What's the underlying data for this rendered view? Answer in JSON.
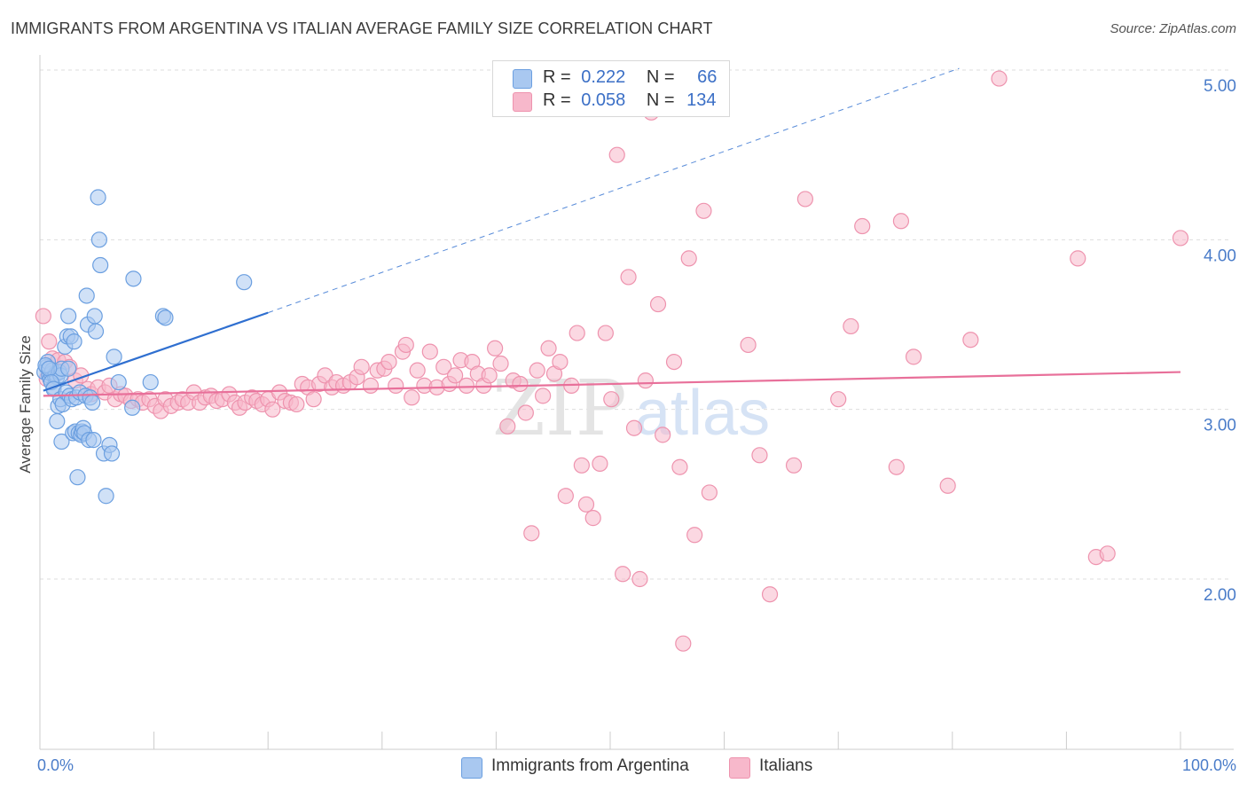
{
  "header": {
    "title": "IMMIGRANTS FROM ARGENTINA VS ITALIAN AVERAGE FAMILY SIZE CORRELATION CHART",
    "source": "Source: ZipAtlas.com"
  },
  "legend": {
    "rows": [
      {
        "r_label": "R =",
        "r_value": "0.222",
        "n_label": "N =",
        "n_value": "66",
        "color": "#a9c8f0"
      },
      {
        "r_label": "R =",
        "r_value": "0.058",
        "n_label": "N =",
        "n_value": "134",
        "color": "#f7b8cb"
      }
    ]
  },
  "bottom_legend": {
    "series_a": "Immigrants from Argentina",
    "series_b": "Italians"
  },
  "watermark": {
    "zip": "ZIP",
    "atlas": "atlas"
  },
  "colors": {
    "blue_fill": "#a9c8f0",
    "blue_stroke": "#6b9fe0",
    "blue_line": "#2f6fd0",
    "pink_fill": "#f7b8cb",
    "pink_stroke": "#ee93ae",
    "pink_line": "#e8709a",
    "grid": "#dddddd",
    "axis_text": "#4a7cc9"
  },
  "chart_data": {
    "type": "scatter",
    "title": "IMMIGRANTS FROM ARGENTINA VS ITALIAN AVERAGE FAMILY SIZE CORRELATION CHART",
    "xlabel": "",
    "ylabel": "Average Family Size",
    "xlim": [
      0,
      100
    ],
    "ylim": [
      1.0,
      5.1
    ],
    "x_tick_labels": [
      "0.0%",
      "100.0%"
    ],
    "y_ticks": [
      2.0,
      3.0,
      4.0,
      5.0
    ],
    "y_tick_labels": [
      "2.00",
      "3.00",
      "4.00",
      "5.00"
    ],
    "grid": true,
    "legend_position": "top-center",
    "series": [
      {
        "name": "Immigrants from Argentina",
        "R": 0.222,
        "N": 66,
        "trend": {
          "x0": 0.3,
          "y0": 3.11,
          "x1": 20.0,
          "y1": 3.57,
          "dashed_to_x": 80.6,
          "dashed_to_y": 5.01
        },
        "points": [
          [
            0.4,
            3.22
          ],
          [
            0.6,
            3.25
          ],
          [
            0.7,
            3.28
          ],
          [
            0.8,
            3.2
          ],
          [
            0.9,
            3.18
          ],
          [
            1.0,
            3.21
          ],
          [
            1.1,
            3.23
          ],
          [
            1.2,
            3.13
          ],
          [
            1.3,
            3.2
          ],
          [
            1.4,
            3.21
          ],
          [
            1.5,
            3.19
          ],
          [
            1.7,
            3.22
          ],
          [
            1.8,
            3.2
          ],
          [
            1.9,
            3.24
          ],
          [
            0.5,
            3.26
          ],
          [
            0.8,
            3.24
          ],
          [
            1.0,
            3.16
          ],
          [
            1.2,
            3.12
          ],
          [
            1.5,
            2.93
          ],
          [
            1.6,
            3.02
          ],
          [
            1.8,
            3.06
          ],
          [
            1.9,
            2.81
          ],
          [
            2.0,
            3.03
          ],
          [
            2.2,
            3.37
          ],
          [
            2.3,
            3.1
          ],
          [
            2.4,
            3.43
          ],
          [
            2.5,
            3.24
          ],
          [
            2.5,
            3.55
          ],
          [
            2.6,
            3.08
          ],
          [
            2.7,
            3.43
          ],
          [
            2.8,
            3.06
          ],
          [
            2.9,
            2.86
          ],
          [
            3.0,
            3.4
          ],
          [
            3.1,
            2.87
          ],
          [
            3.2,
            3.07
          ],
          [
            3.3,
            2.6
          ],
          [
            3.4,
            2.86
          ],
          [
            3.5,
            3.1
          ],
          [
            3.6,
            2.85
          ],
          [
            3.7,
            2.87
          ],
          [
            3.8,
            2.89
          ],
          [
            3.9,
            2.86
          ],
          [
            4.0,
            3.08
          ],
          [
            4.1,
            3.67
          ],
          [
            4.2,
            3.5
          ],
          [
            4.3,
            2.82
          ],
          [
            4.4,
            3.07
          ],
          [
            4.6,
            3.04
          ],
          [
            4.7,
            2.82
          ],
          [
            4.8,
            3.55
          ],
          [
            4.9,
            3.46
          ],
          [
            5.1,
            4.25
          ],
          [
            5.2,
            4.0
          ],
          [
            5.3,
            3.85
          ],
          [
            5.6,
            2.74
          ],
          [
            5.8,
            2.49
          ],
          [
            6.1,
            2.79
          ],
          [
            6.3,
            2.74
          ],
          [
            6.5,
            3.31
          ],
          [
            6.9,
            3.16
          ],
          [
            8.1,
            3.01
          ],
          [
            8.2,
            3.77
          ],
          [
            9.7,
            3.16
          ],
          [
            10.8,
            3.55
          ],
          [
            11.0,
            3.54
          ],
          [
            17.9,
            3.75
          ]
        ]
      },
      {
        "name": "Italians",
        "R": 0.058,
        "N": 134,
        "trend": {
          "x0": 0.3,
          "y0": 3.08,
          "x1": 100.0,
          "y1": 3.22
        },
        "points": [
          [
            0.3,
            3.55
          ],
          [
            0.8,
            3.4
          ],
          [
            1.1,
            3.3
          ],
          [
            1.6,
            3.29
          ],
          [
            2.2,
            3.28
          ],
          [
            2.6,
            3.25
          ],
          [
            3.1,
            3.17
          ],
          [
            3.6,
            3.2
          ],
          [
            4.2,
            3.12
          ],
          [
            4.5,
            3.09
          ],
          [
            5.1,
            3.13
          ],
          [
            5.7,
            3.1
          ],
          [
            6.1,
            3.14
          ],
          [
            6.6,
            3.06
          ],
          [
            7.1,
            3.09
          ],
          [
            7.5,
            3.08
          ],
          [
            8.0,
            3.05
          ],
          [
            8.6,
            3.06
          ],
          [
            9.0,
            3.04
          ],
          [
            9.6,
            3.06
          ],
          [
            10.1,
            3.02
          ],
          [
            10.6,
            2.99
          ],
          [
            11.0,
            3.06
          ],
          [
            11.5,
            3.02
          ],
          [
            12.1,
            3.04
          ],
          [
            12.5,
            3.06
          ],
          [
            13.0,
            3.04
          ],
          [
            13.5,
            3.1
          ],
          [
            14.0,
            3.04
          ],
          [
            14.5,
            3.07
          ],
          [
            15.0,
            3.08
          ],
          [
            15.5,
            3.05
          ],
          [
            16.0,
            3.06
          ],
          [
            16.6,
            3.09
          ],
          [
            17.1,
            3.04
          ],
          [
            17.5,
            3.01
          ],
          [
            18.0,
            3.04
          ],
          [
            18.6,
            3.07
          ],
          [
            19.0,
            3.05
          ],
          [
            19.5,
            3.03
          ],
          [
            20.0,
            3.06
          ],
          [
            20.4,
            3.0
          ],
          [
            21.0,
            3.1
          ],
          [
            21.5,
            3.05
          ],
          [
            22.0,
            3.04
          ],
          [
            22.5,
            3.03
          ],
          [
            23.0,
            3.15
          ],
          [
            23.5,
            3.13
          ],
          [
            24.0,
            3.06
          ],
          [
            24.5,
            3.15
          ],
          [
            25.0,
            3.2
          ],
          [
            25.6,
            3.13
          ],
          [
            26.0,
            3.16
          ],
          [
            26.6,
            3.14
          ],
          [
            27.2,
            3.16
          ],
          [
            27.8,
            3.19
          ],
          [
            28.2,
            3.25
          ],
          [
            29.0,
            3.14
          ],
          [
            29.6,
            3.23
          ],
          [
            30.2,
            3.24
          ],
          [
            30.6,
            3.28
          ],
          [
            31.2,
            3.14
          ],
          [
            31.8,
            3.34
          ],
          [
            32.1,
            3.38
          ],
          [
            32.6,
            3.07
          ],
          [
            33.1,
            3.23
          ],
          [
            33.7,
            3.14
          ],
          [
            34.2,
            3.34
          ],
          [
            34.8,
            3.13
          ],
          [
            35.4,
            3.25
          ],
          [
            35.9,
            3.15
          ],
          [
            36.4,
            3.2
          ],
          [
            36.9,
            3.29
          ],
          [
            37.4,
            3.14
          ],
          [
            37.9,
            3.28
          ],
          [
            38.4,
            3.21
          ],
          [
            38.9,
            3.14
          ],
          [
            39.4,
            3.2
          ],
          [
            39.9,
            3.36
          ],
          [
            40.4,
            3.27
          ],
          [
            41.0,
            2.9
          ],
          [
            41.5,
            3.17
          ],
          [
            42.1,
            3.15
          ],
          [
            42.6,
            2.98
          ],
          [
            43.1,
            2.27
          ],
          [
            43.6,
            3.23
          ],
          [
            44.1,
            3.08
          ],
          [
            44.6,
            3.36
          ],
          [
            45.1,
            3.21
          ],
          [
            45.6,
            3.28
          ],
          [
            46.1,
            2.49
          ],
          [
            46.6,
            3.14
          ],
          [
            47.1,
            3.45
          ],
          [
            47.5,
            2.67
          ],
          [
            47.9,
            2.44
          ],
          [
            48.5,
            2.36
          ],
          [
            49.1,
            2.68
          ],
          [
            49.6,
            3.45
          ],
          [
            50.1,
            3.06
          ],
          [
            50.6,
            4.5
          ],
          [
            51.1,
            2.03
          ],
          [
            51.6,
            3.78
          ],
          [
            52.1,
            2.89
          ],
          [
            52.6,
            2.0
          ],
          [
            53.1,
            3.17
          ],
          [
            53.6,
            4.75
          ],
          [
            54.2,
            3.62
          ],
          [
            54.6,
            2.85
          ],
          [
            55.6,
            3.28
          ],
          [
            56.1,
            2.66
          ],
          [
            56.4,
            1.62
          ],
          [
            56.9,
            3.89
          ],
          [
            57.4,
            2.26
          ],
          [
            58.2,
            4.17
          ],
          [
            58.7,
            2.51
          ],
          [
            62.1,
            3.38
          ],
          [
            63.1,
            2.73
          ],
          [
            64.0,
            1.91
          ],
          [
            66.1,
            2.67
          ],
          [
            67.1,
            4.24
          ],
          [
            70.0,
            3.06
          ],
          [
            71.1,
            3.49
          ],
          [
            72.1,
            4.08
          ],
          [
            75.1,
            2.66
          ],
          [
            75.5,
            4.11
          ],
          [
            76.6,
            3.31
          ],
          [
            79.6,
            2.55
          ],
          [
            81.6,
            3.41
          ],
          [
            84.1,
            4.95
          ],
          [
            91.0,
            3.89
          ],
          [
            92.6,
            2.13
          ],
          [
            93.6,
            2.15
          ],
          [
            100.0,
            4.01
          ],
          [
            0.6,
            3.18
          ]
        ]
      }
    ]
  }
}
